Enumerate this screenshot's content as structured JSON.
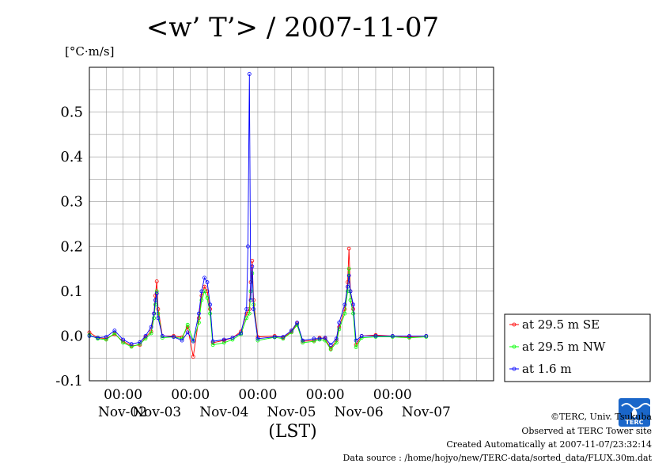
{
  "chart_data": {
    "type": "line",
    "title": "<w’ T’> / 2007-11-07",
    "ylabel": "[°C·m/s]",
    "xlabel": "(LST)",
    "ylim": [
      -0.1,
      0.6
    ],
    "yticks": [
      "-0.1",
      "0.0",
      "0.1",
      "0.2",
      "0.3",
      "0.4",
      "0.5"
    ],
    "xticks_time": [
      "00:00",
      "00:00",
      "00:00",
      "00:00",
      "00:00"
    ],
    "xticks_date": [
      "Nov-02",
      "Nov-03",
      "Nov-04",
      "Nov-05",
      "Nov-06",
      "Nov-07"
    ],
    "grid": true,
    "legend_position": "right",
    "x_start": "2007-11-01T12:00",
    "x_end": "2007-11-07T12:00",
    "series": [
      {
        "name": "at 29.5 m SE",
        "color": "#ff0000",
        "points": [
          [
            "2007-11-01T12:00",
            0.008
          ],
          [
            "2007-11-01T15:00",
            -0.004
          ],
          [
            "2007-11-01T18:00",
            -0.006
          ],
          [
            "2007-11-01T21:00",
            0.004
          ],
          [
            "2007-11-02T00:00",
            -0.012
          ],
          [
            "2007-11-02T03:00",
            -0.022
          ],
          [
            "2007-11-02T06:00",
            -0.02
          ],
          [
            "2007-11-02T08:00",
            -0.002
          ],
          [
            "2007-11-02T10:00",
            0.01
          ],
          [
            "2007-11-02T11:00",
            0.05
          ],
          [
            "2007-11-02T11:30",
            0.09
          ],
          [
            "2007-11-02T12:00",
            0.122
          ],
          [
            "2007-11-02T12:30",
            0.06
          ],
          [
            "2007-11-02T14:00",
            0.0
          ],
          [
            "2007-11-02T18:00",
            0.0
          ],
          [
            "2007-11-02T21:00",
            -0.003
          ],
          [
            "2007-11-02T23:00",
            0.02
          ],
          [
            "2007-11-03T01:00",
            -0.046
          ],
          [
            "2007-11-03T03:00",
            0.04
          ],
          [
            "2007-11-03T04:00",
            0.09
          ],
          [
            "2007-11-03T05:00",
            0.11
          ],
          [
            "2007-11-03T06:00",
            0.1
          ],
          [
            "2007-11-03T07:00",
            0.06
          ],
          [
            "2007-11-03T08:00",
            -0.015
          ],
          [
            "2007-11-03T12:00",
            -0.01
          ],
          [
            "2007-11-03T15:00",
            -0.004
          ],
          [
            "2007-11-03T18:00",
            0.01
          ],
          [
            "2007-11-03T20:00",
            0.05
          ],
          [
            "2007-11-03T21:00",
            0.06
          ],
          [
            "2007-11-03T21:30",
            0.12
          ],
          [
            "2007-11-03T22:00",
            0.168
          ],
          [
            "2007-11-03T22:30",
            0.08
          ],
          [
            "2007-11-04T00:00",
            -0.002
          ],
          [
            "2007-11-04T06:00",
            0.0
          ],
          [
            "2007-11-04T09:00",
            -0.004
          ],
          [
            "2007-11-04T12:00",
            0.01
          ],
          [
            "2007-11-04T14:00",
            0.028
          ],
          [
            "2007-11-04T16:00",
            -0.012
          ],
          [
            "2007-11-04T20:00",
            -0.01
          ],
          [
            "2007-11-04T22:00",
            -0.004
          ],
          [
            "2007-11-05T00:00",
            -0.006
          ],
          [
            "2007-11-05T02:00",
            -0.028
          ],
          [
            "2007-11-05T04:00",
            -0.01
          ],
          [
            "2007-11-05T05:00",
            0.02
          ],
          [
            "2007-11-05T07:00",
            0.06
          ],
          [
            "2007-11-05T08:00",
            0.12
          ],
          [
            "2007-11-05T08:30",
            0.195
          ],
          [
            "2007-11-05T09:00",
            0.1
          ],
          [
            "2007-11-05T10:00",
            0.06
          ],
          [
            "2007-11-05T11:00",
            -0.02
          ],
          [
            "2007-11-05T13:00",
            0.0
          ],
          [
            "2007-11-05T18:00",
            0.002
          ],
          [
            "2007-11-06T00:00",
            0.0
          ],
          [
            "2007-11-06T06:00",
            -0.002
          ],
          [
            "2007-11-06T12:00",
            0.0
          ]
        ]
      },
      {
        "name": "at 29.5 m NW",
        "color": "#00ff00",
        "points": [
          [
            "2007-11-01T12:00",
            0.002
          ],
          [
            "2007-11-01T15:00",
            -0.006
          ],
          [
            "2007-11-01T18:00",
            -0.008
          ],
          [
            "2007-11-01T21:00",
            0.006
          ],
          [
            "2007-11-02T00:00",
            -0.015
          ],
          [
            "2007-11-02T03:00",
            -0.024
          ],
          [
            "2007-11-02T06:00",
            -0.018
          ],
          [
            "2007-11-02T08:00",
            -0.006
          ],
          [
            "2007-11-02T10:00",
            0.006
          ],
          [
            "2007-11-02T11:00",
            0.04
          ],
          [
            "2007-11-02T11:30",
            0.07
          ],
          [
            "2007-11-02T12:00",
            0.1
          ],
          [
            "2007-11-02T12:30",
            0.05
          ],
          [
            "2007-11-02T14:00",
            -0.004
          ],
          [
            "2007-11-02T18:00",
            -0.002
          ],
          [
            "2007-11-02T21:00",
            -0.006
          ],
          [
            "2007-11-02T23:00",
            0.025
          ],
          [
            "2007-11-03T01:00",
            -0.01
          ],
          [
            "2007-11-03T03:00",
            0.03
          ],
          [
            "2007-11-03T04:00",
            0.08
          ],
          [
            "2007-11-03T05:00",
            0.1
          ],
          [
            "2007-11-03T06:00",
            0.085
          ],
          [
            "2007-11-03T07:00",
            0.05
          ],
          [
            "2007-11-03T08:00",
            -0.02
          ],
          [
            "2007-11-03T12:00",
            -0.015
          ],
          [
            "2007-11-03T15:00",
            -0.008
          ],
          [
            "2007-11-03T18:00",
            0.004
          ],
          [
            "2007-11-03T20:00",
            0.04
          ],
          [
            "2007-11-03T21:00",
            0.05
          ],
          [
            "2007-11-03T21:30",
            0.1
          ],
          [
            "2007-11-03T22:00",
            0.14
          ],
          [
            "2007-11-03T22:30",
            0.07
          ],
          [
            "2007-11-04T00:00",
            -0.01
          ],
          [
            "2007-11-04T06:00",
            -0.003
          ],
          [
            "2007-11-04T09:00",
            -0.006
          ],
          [
            "2007-11-04T12:00",
            0.008
          ],
          [
            "2007-11-04T14:00",
            0.025
          ],
          [
            "2007-11-04T16:00",
            -0.015
          ],
          [
            "2007-11-04T20:00",
            -0.012
          ],
          [
            "2007-11-04T22:00",
            -0.008
          ],
          [
            "2007-11-05T00:00",
            -0.01
          ],
          [
            "2007-11-05T02:00",
            -0.03
          ],
          [
            "2007-11-05T04:00",
            -0.015
          ],
          [
            "2007-11-05T05:00",
            0.015
          ],
          [
            "2007-11-05T07:00",
            0.05
          ],
          [
            "2007-11-05T08:00",
            0.1
          ],
          [
            "2007-11-05T08:30",
            0.15
          ],
          [
            "2007-11-05T09:00",
            0.08
          ],
          [
            "2007-11-05T10:00",
            0.05
          ],
          [
            "2007-11-05T11:00",
            -0.025
          ],
          [
            "2007-11-05T13:00",
            -0.004
          ],
          [
            "2007-11-05T18:00",
            -0.002
          ],
          [
            "2007-11-06T00:00",
            -0.002
          ],
          [
            "2007-11-06T06:00",
            -0.004
          ],
          [
            "2007-11-06T12:00",
            -0.002
          ]
        ]
      },
      {
        "name": "at 1.6 m",
        "color": "#0000ff",
        "points": [
          [
            "2007-11-01T12:00",
            0.0
          ],
          [
            "2007-11-01T15:00",
            -0.004
          ],
          [
            "2007-11-01T18:00",
            -0.002
          ],
          [
            "2007-11-01T21:00",
            0.012
          ],
          [
            "2007-11-02T00:00",
            -0.008
          ],
          [
            "2007-11-02T03:00",
            -0.018
          ],
          [
            "2007-11-02T06:00",
            -0.014
          ],
          [
            "2007-11-02T08:00",
            0.0
          ],
          [
            "2007-11-02T10:00",
            0.02
          ],
          [
            "2007-11-02T11:00",
            0.05
          ],
          [
            "2007-11-02T11:30",
            0.08
          ],
          [
            "2007-11-02T12:00",
            0.095
          ],
          [
            "2007-11-02T12:30",
            0.04
          ],
          [
            "2007-11-02T14:00",
            0.0
          ],
          [
            "2007-11-02T18:00",
            -0.002
          ],
          [
            "2007-11-02T21:00",
            -0.01
          ],
          [
            "2007-11-02T23:00",
            0.008
          ],
          [
            "2007-11-03T01:00",
            -0.012
          ],
          [
            "2007-11-03T03:00",
            0.05
          ],
          [
            "2007-11-03T04:00",
            0.1
          ],
          [
            "2007-11-03T05:00",
            0.13
          ],
          [
            "2007-11-03T06:00",
            0.12
          ],
          [
            "2007-11-03T07:00",
            0.07
          ],
          [
            "2007-11-03T08:00",
            -0.012
          ],
          [
            "2007-11-03T12:00",
            -0.008
          ],
          [
            "2007-11-03T15:00",
            -0.004
          ],
          [
            "2007-11-03T18:00",
            0.006
          ],
          [
            "2007-11-03T20:00",
            0.06
          ],
          [
            "2007-11-03T20:30",
            0.2
          ],
          [
            "2007-11-03T21:00",
            0.585
          ],
          [
            "2007-11-03T21:30",
            0.08
          ],
          [
            "2007-11-03T22:00",
            0.155
          ],
          [
            "2007-11-03T22:30",
            0.06
          ],
          [
            "2007-11-04T00:00",
            -0.006
          ],
          [
            "2007-11-04T06:00",
            -0.002
          ],
          [
            "2007-11-04T09:00",
            -0.002
          ],
          [
            "2007-11-04T12:00",
            0.012
          ],
          [
            "2007-11-04T14:00",
            0.03
          ],
          [
            "2007-11-04T16:00",
            -0.01
          ],
          [
            "2007-11-04T20:00",
            -0.006
          ],
          [
            "2007-11-04T22:00",
            -0.006
          ],
          [
            "2007-11-05T00:00",
            -0.004
          ],
          [
            "2007-11-05T02:00",
            -0.02
          ],
          [
            "2007-11-05T04:00",
            -0.006
          ],
          [
            "2007-11-05T05:00",
            0.03
          ],
          [
            "2007-11-05T07:00",
            0.07
          ],
          [
            "2007-11-05T08:00",
            0.11
          ],
          [
            "2007-11-05T08:30",
            0.135
          ],
          [
            "2007-11-05T09:00",
            0.1
          ],
          [
            "2007-11-05T10:00",
            0.07
          ],
          [
            "2007-11-05T11:00",
            -0.01
          ],
          [
            "2007-11-05T13:00",
            0.0
          ],
          [
            "2007-11-05T18:00",
            0.0
          ],
          [
            "2007-11-06T00:00",
            0.0
          ],
          [
            "2007-11-06T06:00",
            0.0
          ],
          [
            "2007-11-06T12:00",
            0.0
          ]
        ]
      }
    ]
  },
  "footer": {
    "copyright": "©TERC, Univ. Tsukuba",
    "observed": "Observed at TERC Tower site",
    "created": "Created Automatically at 2007-11-07/23:32:14",
    "source": "Data source : /home/hojyo/new/TERC-data/sorted_data/FLUX.30m.dat",
    "logo_text": "TERC"
  }
}
